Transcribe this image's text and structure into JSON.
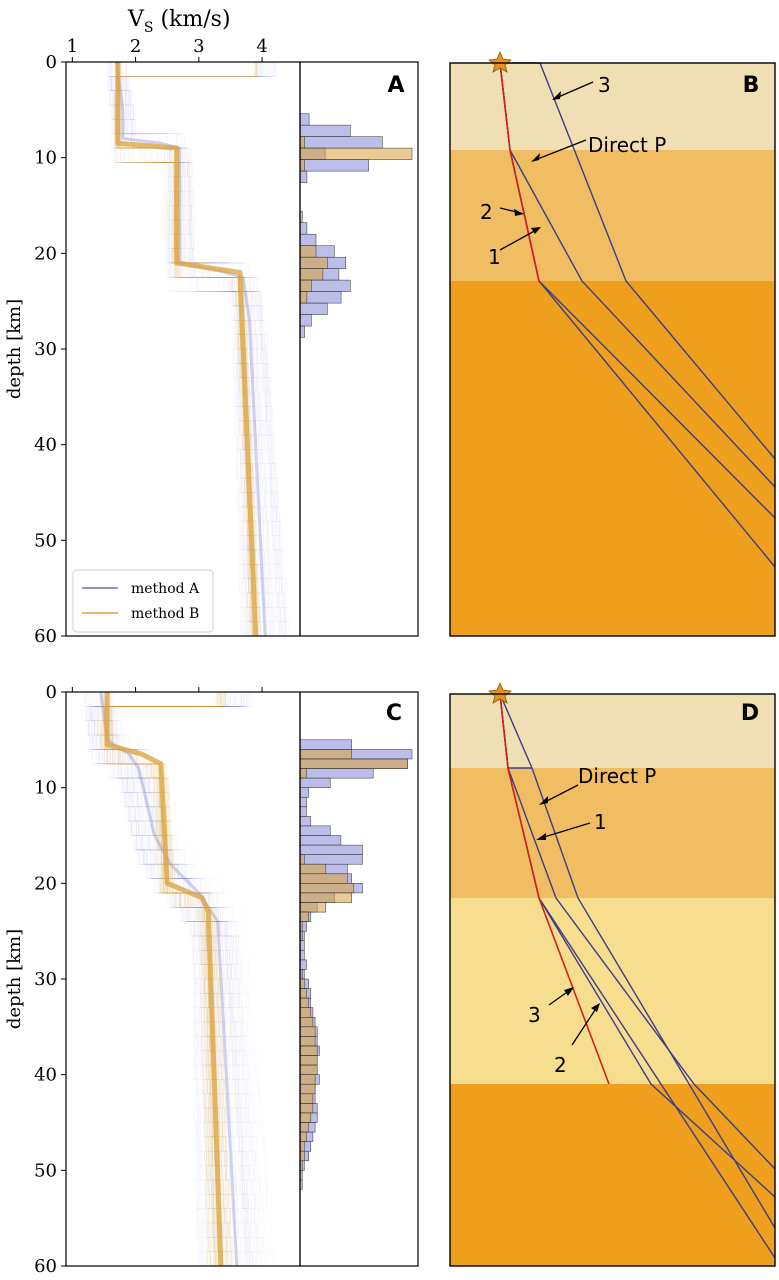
{
  "chart_data": [
    {
      "id": "A",
      "type": "line",
      "panel_label": "A",
      "xlabel": "V",
      "xlabel_sub": "S",
      "xlabel_unit": " (km/s)",
      "ylabel": "depth [km]",
      "xlim": [
        0.9,
        4.6
      ],
      "ylim": [
        60,
        0
      ],
      "xticks": [
        1,
        2,
        3,
        4
      ],
      "yticks": [
        0,
        10,
        20,
        30,
        40,
        50,
        60
      ],
      "legend": {
        "position": "lower-left",
        "entries": [
          {
            "label": "method A",
            "color": "#6b6fc4"
          },
          {
            "label": "method B",
            "color": "#d9a13b"
          }
        ]
      },
      "series": [
        {
          "name": "method A",
          "color": "#7b7fd0",
          "depth": [
            0,
            5,
            8,
            8.5,
            9,
            21,
            21.8,
            22.5,
            27,
            60
          ],
          "vs": [
            1.7,
            1.8,
            1.8,
            2.4,
            2.7,
            2.7,
            3.3,
            3.7,
            3.8,
            4.05
          ]
        },
        {
          "name": "method B",
          "color": "#d9a13b",
          "depth": [
            0,
            8.5,
            9,
            21,
            22,
            60
          ],
          "vs": [
            1.72,
            1.72,
            2.65,
            2.65,
            3.65,
            3.9
          ]
        }
      ],
      "histogram": {
        "bin_centers": [
          6,
          7.2,
          8.4,
          9.6,
          10.8,
          12,
          16.2,
          17.4,
          18.6,
          19.8,
          21,
          22.2,
          23.4,
          24.6,
          25.8,
          27,
          28.2
        ],
        "method_A": [
          4,
          22,
          36,
          11,
          30,
          3,
          1,
          3,
          7,
          15,
          20,
          17,
          22,
          18,
          12,
          5,
          2
        ],
        "method_B": [
          0,
          0,
          2,
          49,
          2,
          0,
          0,
          0,
          0,
          7,
          12,
          10,
          5,
          3,
          0,
          0,
          0
        ]
      }
    },
    {
      "id": "C",
      "type": "line",
      "panel_label": "C",
      "ylabel": "depth [km]",
      "xlim": [
        0.9,
        4.6
      ],
      "ylim": [
        60,
        0
      ],
      "yticks": [
        0,
        10,
        20,
        30,
        40,
        50,
        60
      ],
      "series": [
        {
          "name": "method A",
          "color": "#7b7fd0",
          "depth": [
            0,
            5,
            6.5,
            8,
            15,
            18,
            21,
            24,
            60
          ],
          "vs": [
            1.45,
            1.55,
            1.9,
            2.05,
            2.3,
            2.55,
            3.0,
            3.3,
            3.6
          ]
        },
        {
          "name": "method B",
          "color": "#d9a13b",
          "depth": [
            0,
            5.5,
            6.5,
            7.5,
            20,
            21.5,
            23,
            60
          ],
          "vs": [
            1.55,
            1.55,
            2.1,
            2.4,
            2.5,
            3.05,
            3.15,
            3.35
          ]
        }
      ],
      "histogram": {
        "bin_centers": [
          5.5,
          6.5,
          7.5,
          8.5,
          9.5,
          10.5,
          11.5,
          12.5,
          13.5,
          14.5,
          15.5,
          16.5,
          17.5,
          18.5,
          19.5,
          20.5,
          21.5,
          22.5,
          23.5,
          24.5,
          25.5,
          26.5,
          27.5,
          28.5,
          29.5,
          30.5,
          31.5,
          32.5,
          33.5,
          34.5,
          35.5,
          36.5,
          37.5,
          38.5,
          39.5,
          40.5,
          41.5,
          42.5,
          43.5,
          44.5,
          45.5,
          46.5,
          47.5,
          48.5,
          49.5,
          50.5,
          51.5
        ],
        "method_A": [
          24,
          52,
          50,
          34,
          14,
          4,
          3,
          3,
          5,
          14,
          19,
          29,
          29,
          22,
          24,
          29,
          16,
          8,
          5,
          3,
          2,
          2,
          2,
          3,
          2,
          4,
          5,
          5,
          6,
          7,
          8,
          8,
          9,
          8,
          8,
          9,
          7,
          7,
          8,
          8,
          7,
          6,
          5,
          4,
          2,
          1,
          1
        ],
        "method_B": [
          0,
          24,
          50,
          3,
          0,
          0,
          0,
          0,
          0,
          0,
          0,
          0,
          2,
          12,
          22,
          25,
          24,
          12,
          4,
          1,
          1,
          0,
          0,
          0,
          1,
          2,
          3,
          4,
          5,
          6,
          7,
          7,
          8,
          8,
          8,
          7,
          7,
          6,
          6,
          5,
          4,
          3,
          2,
          2,
          1,
          0,
          0
        ]
      }
    },
    {
      "id": "B",
      "type": "diagram",
      "panel_label": "B",
      "layer_boundaries_km": [
        0,
        9,
        22.8,
        60
      ],
      "layer_colors": [
        "#f1dfb4",
        "#f0bd62",
        "#ee9f1d"
      ],
      "labels": [
        "Direct P",
        "1",
        "2",
        "3"
      ]
    },
    {
      "id": "D",
      "type": "diagram",
      "panel_label": "D",
      "layer_boundaries_km": [
        0,
        7.7,
        21.8,
        41.3,
        60
      ],
      "layer_colors": [
        "#f1dfb4",
        "#f0bd62",
        "#f7de8e",
        "#ee9f1d"
      ],
      "labels": [
        "Direct P",
        "1",
        "3",
        "2"
      ]
    }
  ]
}
